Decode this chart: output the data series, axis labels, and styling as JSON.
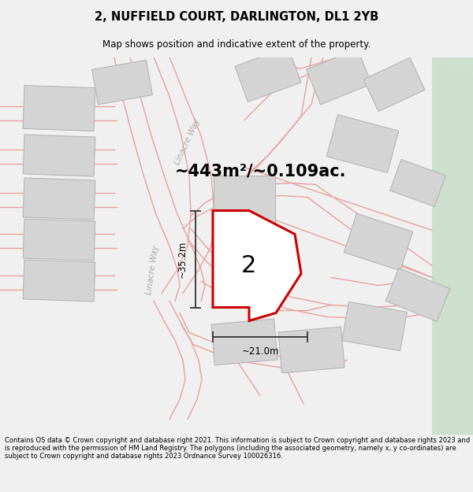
{
  "title_line1": "2, NUFFIELD COURT, DARLINGTON, DL1 2YB",
  "title_line2": "Map shows position and indicative extent of the property.",
  "area_text": "~443m²/~0.109ac.",
  "label_number": "2",
  "dim_vertical": "~35.2m",
  "dim_horizontal": "~21.0m",
  "road_label_top": "Linacre Way",
  "road_label_mid": "Linacre Way",
  "footnote": "Contains OS data © Crown copyright and database right 2021. This information is subject to Crown copyright and database rights 2023 and is reproduced with the permission of HM Land Registry. The polygons (including the associated geometry, namely x, y co-ordinates) are subject to Crown copyright and database rights 2023 Ordnance Survey 100026316.",
  "bg_color": "#f0f0f0",
  "map_bg": "#f8f8f8",
  "light_green": "#cde0d0",
  "road_stroke": "#e8a0a0",
  "parcel_outline": "#cc0000",
  "parcel_fill": "#ffffff",
  "building_fill": "#d4d4d4",
  "building_outline": "#b0b0b0",
  "dim_line_color": "#404040",
  "road_label_color": "#aaaaaa"
}
